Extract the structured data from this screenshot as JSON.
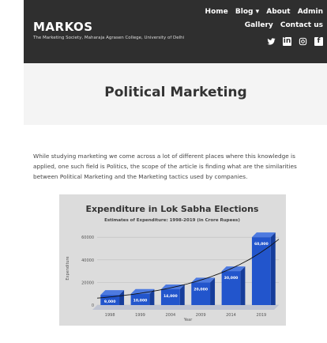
{
  "header": {
    "brand_title": "MARKOS",
    "brand_subtitle": "The Marketing Society, Maharaja Agrasen College, University of Delhi",
    "nav_row1": [
      "Home",
      "Blog ▾",
      "About",
      "Admin"
    ],
    "nav_row2": [
      "Gallery",
      "Contact us"
    ],
    "social_icons": [
      "twitter-icon",
      "linkedin-icon",
      "instagram-icon",
      "facebook-icon"
    ]
  },
  "page": {
    "title": "Political Marketing",
    "intro": "While studying marketing we come across a lot of different places where this knowledge is applied, one such field is Politics, the scope of the article is finding what are the similarities between Political Marketing and the Marketing tactics used by companies."
  },
  "chart_data": {
    "type": "bar",
    "title": "Expenditure in Lok Sabha Elections",
    "subtitle": "Estimates of Expenditure: 1998-2019 (in Crore Rupees)",
    "xlabel": "Year",
    "ylabel": "Expenditure",
    "categories": [
      "1998",
      "1999",
      "2004",
      "2009",
      "2014",
      "2019"
    ],
    "values": [
      9000,
      10000,
      14000,
      20000,
      30000,
      60000
    ],
    "data_labels": [
      "9,000",
      "10,000",
      "14,000",
      "20,000",
      "30,000",
      "60,000"
    ],
    "yticks": [
      0,
      20000,
      40000,
      60000
    ],
    "ytick_labels": [
      "0",
      "20000",
      "40000",
      "60000"
    ],
    "ylim": [
      0,
      65000
    ],
    "trendline": "exponential",
    "grid": true,
    "bar_color": "#2255cc",
    "background": "#dcdcdc"
  }
}
